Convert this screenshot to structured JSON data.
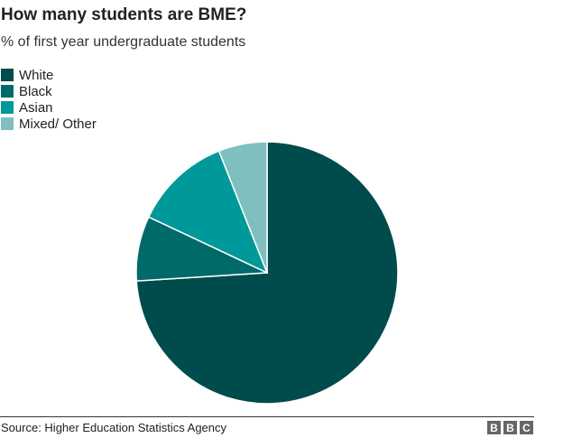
{
  "chart_data": {
    "type": "pie",
    "title": "How many students are BME?",
    "subtitle": "% of first year undergraduate students",
    "categories": [
      "White",
      "Black",
      "Asian",
      "Mixed/ Other"
    ],
    "values": [
      74,
      8,
      12,
      6
    ],
    "colors": [
      "#004b4b",
      "#006a6a",
      "#009999",
      "#7fbfbf"
    ],
    "legend_placement": "top-left",
    "start": "12 o'clock, clockwise"
  },
  "footer": {
    "source": "Source: Higher Education Statistics Agency",
    "logo": [
      "B",
      "B",
      "C"
    ]
  }
}
